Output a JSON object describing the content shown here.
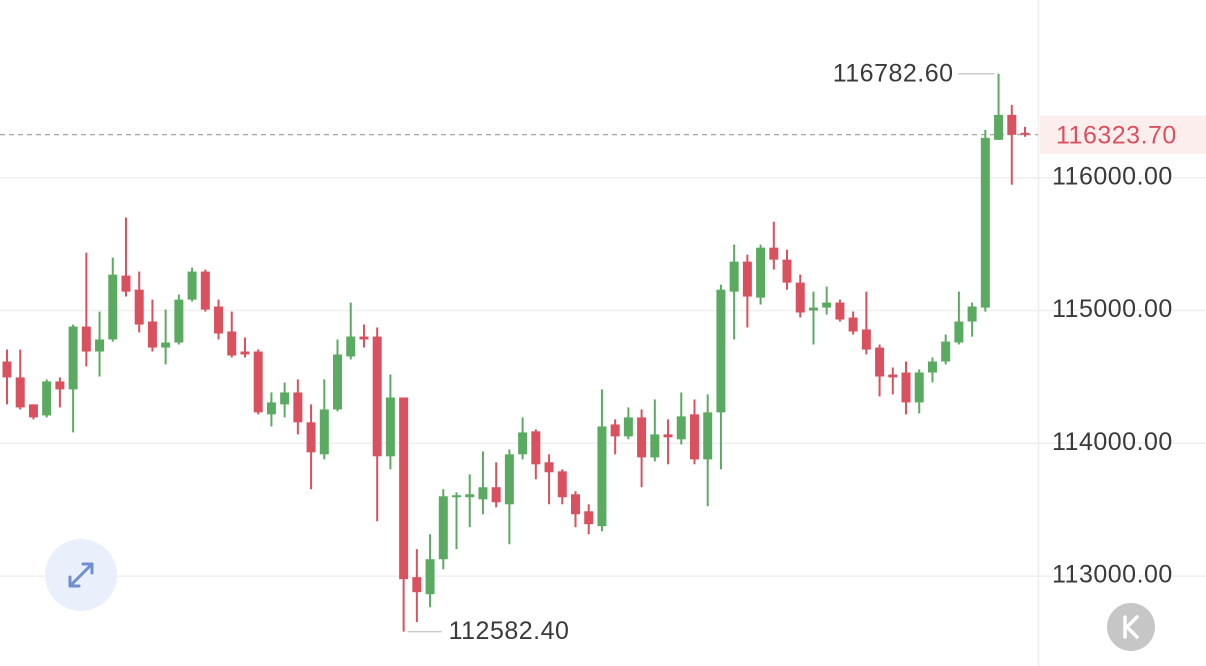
{
  "chart_data": {
    "type": "candlestick",
    "up_color": "#5aab61",
    "down_color": "#d9515f",
    "ylim": [
      112406,
      117338
    ],
    "yticks": [
      {
        "value": 113000,
        "label": "113000.00"
      },
      {
        "value": 114000,
        "label": "114000.00"
      },
      {
        "value": 115000,
        "label": "115000.00"
      },
      {
        "value": 116000,
        "label": "116000.00"
      }
    ],
    "grid": true,
    "last_price": {
      "value": 116323.7,
      "label": "116323.70"
    },
    "max_label": {
      "value": 116782.6,
      "label": "116782.60"
    },
    "min_label": {
      "value": 112582.4,
      "label": "112582.40"
    },
    "open": [
      114616,
      114496,
      114293,
      114210,
      114466,
      114406,
      114879,
      114691,
      114782,
      115263,
      115157,
      114917,
      114721,
      114759,
      115082,
      115293,
      115030,
      114842,
      114691,
      114691,
      114218,
      114293,
      114383,
      114158,
      113917,
      114255,
      114654,
      114804,
      114804,
      113902,
      114345,
      112992,
      112864,
      113127,
      113601,
      113594,
      113578,
      113669,
      113541,
      113917,
      114090,
      113857,
      113789,
      113616,
      113488,
      113376,
      114142,
      114052,
      114195,
      113894,
      114067,
      114030,
      114218,
      113879,
      114233,
      115142,
      115368,
      115097,
      115473,
      115383,
      115210,
      115000,
      115022,
      115060,
      114947,
      114857,
      114721,
      114518,
      114533,
      114308,
      114533,
      114616,
      114759,
      114917,
      115022,
      116285,
      116473,
      116338
    ],
    "high": [
      114706,
      114706,
      114293,
      114481,
      114496,
      114894,
      115436,
      114992,
      115398,
      115699,
      115293,
      115082,
      115007,
      115120,
      115323,
      115308,
      115082,
      114992,
      114797,
      114706,
      114383,
      114458,
      114481,
      114293,
      114481,
      114782,
      115060,
      114894,
      114872,
      114518,
      114345,
      113203,
      113315,
      113654,
      113631,
      113766,
      113939,
      113857,
      113954,
      114195,
      114105,
      113917,
      113804,
      113639,
      113541,
      114406,
      114180,
      114270,
      114255,
      114330,
      114180,
      114383,
      114330,
      114368,
      115195,
      115496,
      115421,
      115496,
      115669,
      115458,
      115270,
      115142,
      115180,
      115082,
      114992,
      115142,
      114744,
      114571,
      114616,
      114556,
      114646,
      114819,
      115142,
      115060,
      116360,
      116782.6,
      116548,
      116383
    ],
    "low": [
      114293,
      114255,
      114180,
      114195,
      114270,
      114082,
      114579,
      114503,
      114766,
      115105,
      114834,
      114691,
      114594,
      114744,
      115067,
      114992,
      114782,
      114646,
      114646,
      114218,
      114127,
      114195,
      114067,
      113654,
      113879,
      114240,
      114631,
      114721,
      113413,
      113804,
      112582.4,
      112654,
      112766,
      113052,
      113203,
      113368,
      113466,
      113518,
      113240,
      113879,
      113729,
      113541,
      113541,
      113368,
      113315,
      113338,
      113917,
      114030,
      113669,
      113864,
      113842,
      113992,
      113842,
      113526,
      113804,
      114782,
      114872,
      115045,
      115308,
      115157,
      114947,
      114744,
      114970,
      114917,
      114819,
      114669,
      114353,
      114368,
      114218,
      114225,
      114458,
      114594,
      114744,
      114803,
      114992,
      116285,
      115947,
      116308
    ],
    "close": [
      114496,
      114270,
      114195,
      114466,
      114406,
      114879,
      114691,
      114782,
      115270,
      115142,
      114894,
      114721,
      114759,
      115082,
      115293,
      115007,
      114827,
      114661,
      114669,
      114233,
      114308,
      114383,
      114158,
      113932,
      114255,
      114669,
      114804,
      114782,
      113902,
      114345,
      112977,
      112879,
      113127,
      113601,
      113609,
      113616,
      113669,
      113556,
      113917,
      114082,
      113842,
      113782,
      113594,
      113466,
      113391,
      114127,
      114052,
      114195,
      113894,
      114067,
      114045,
      114203,
      113879,
      114233,
      115157,
      115368,
      115105,
      115473,
      115383,
      115210,
      114985,
      115022,
      115060,
      114932,
      114842,
      114706,
      114503,
      114496,
      114308,
      114533,
      114616,
      114766,
      114917,
      115030,
      116300,
      116473,
      116323,
      116323.7
    ]
  }
}
